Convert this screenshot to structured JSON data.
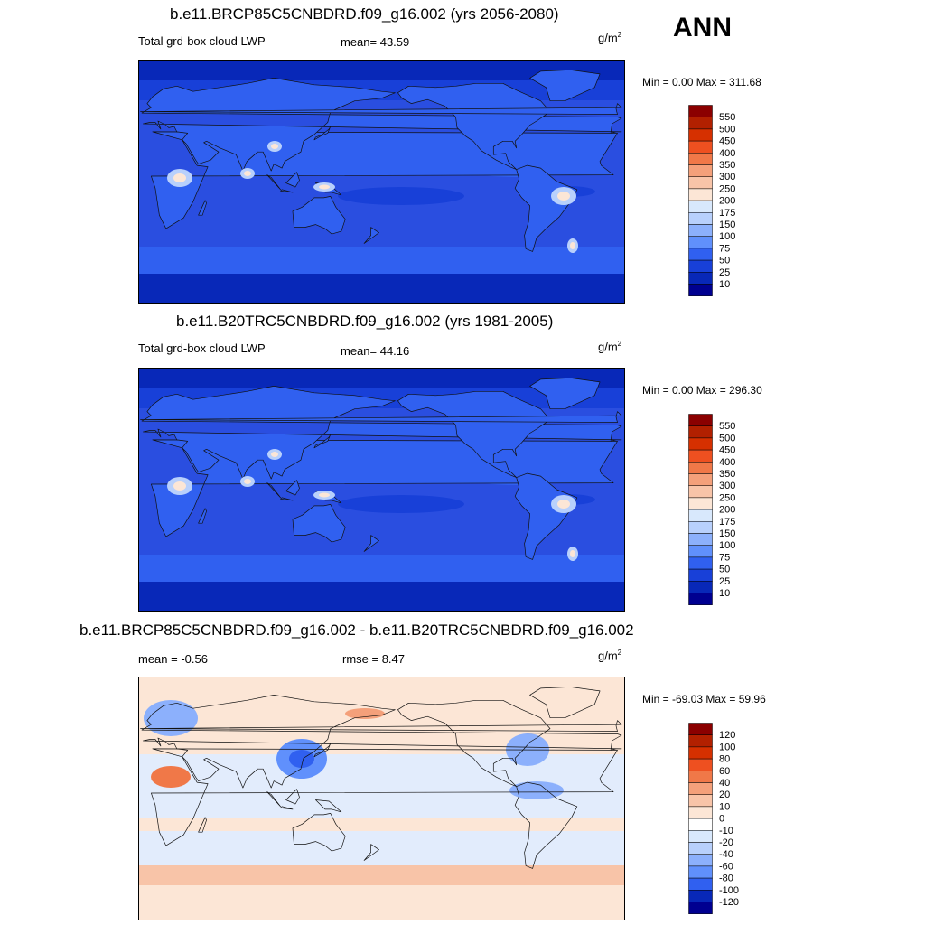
{
  "season": "ANN",
  "panels": [
    {
      "title": "b.e11.BRCP85C5CNBDRD.f09_g16.002 (yrs 2056-2080)",
      "left_label": "Total grd-box cloud LWP",
      "center_label": "mean=  43.59",
      "units_base": "g/m",
      "units_exp": "2",
      "minmax": "Min =   0.00 Max = 311.68",
      "levels": [
        "550",
        "500",
        "450",
        "400",
        "350",
        "300",
        "250",
        "200",
        "175",
        "150",
        "100",
        "75",
        "50",
        "25",
        "10"
      ],
      "colors": [
        "#8b0000",
        "#b22000",
        "#d63000",
        "#ee5020",
        "#f07848",
        "#f4a07a",
        "#f8c4a8",
        "#fce6d6",
        "#d8e8fc",
        "#b8d0fc",
        "#8cb0fc",
        "#6090fc",
        "#3060f0",
        "#1840d8",
        "#0828b8",
        "#000090"
      ],
      "ocean_color": "#2a4ee0",
      "polar_color": "#0a2cb8",
      "land_color": "#3060f0"
    },
    {
      "title": "b.e11.B20TRC5CNBDRD.f09_g16.002 (yrs 1981-2005)",
      "left_label": "Total grd-box cloud LWP",
      "center_label": "mean=  44.16",
      "units_base": "g/m",
      "units_exp": "2",
      "minmax": "Min =   0.00 Max = 296.30",
      "levels": [
        "550",
        "500",
        "450",
        "400",
        "350",
        "300",
        "250",
        "200",
        "175",
        "150",
        "100",
        "75",
        "50",
        "25",
        "10"
      ],
      "colors": [
        "#8b0000",
        "#b22000",
        "#d63000",
        "#ee5020",
        "#f07848",
        "#f4a07a",
        "#f8c4a8",
        "#fce6d6",
        "#d8e8fc",
        "#b8d0fc",
        "#8cb0fc",
        "#6090fc",
        "#3060f0",
        "#1840d8",
        "#0828b8",
        "#000090"
      ],
      "ocean_color": "#2a4ee0",
      "polar_color": "#0a2cb8",
      "land_color": "#3060f0"
    },
    {
      "title": "b.e11.BRCP85C5CNBDRD.f09_g16.002 - b.e11.B20TRC5CNBDRD.f09_g16.002",
      "left_label": "mean =  -0.56",
      "center_label": "rmse =   8.47",
      "units_base": "g/m",
      "units_exp": "2",
      "minmax": "Min = -69.03 Max =  59.96",
      "levels": [
        "120",
        "100",
        "80",
        "60",
        "40",
        "20",
        "10",
        "0",
        "-10",
        "-20",
        "-40",
        "-60",
        "-80",
        "-100",
        "-120"
      ],
      "colors": [
        "#8b0000",
        "#b22000",
        "#d63000",
        "#ee5020",
        "#f07848",
        "#f4a07a",
        "#f8c4a8",
        "#fce6d6",
        "#ffffff",
        "#d8e8fc",
        "#b8d0fc",
        "#8cb0fc",
        "#6090fc",
        "#3060f0",
        "#0828b8",
        "#000090"
      ],
      "ocean_color": "#fce6d6",
      "polar_color": "#fce6d6",
      "land_color": "#fce6d6"
    }
  ]
}
